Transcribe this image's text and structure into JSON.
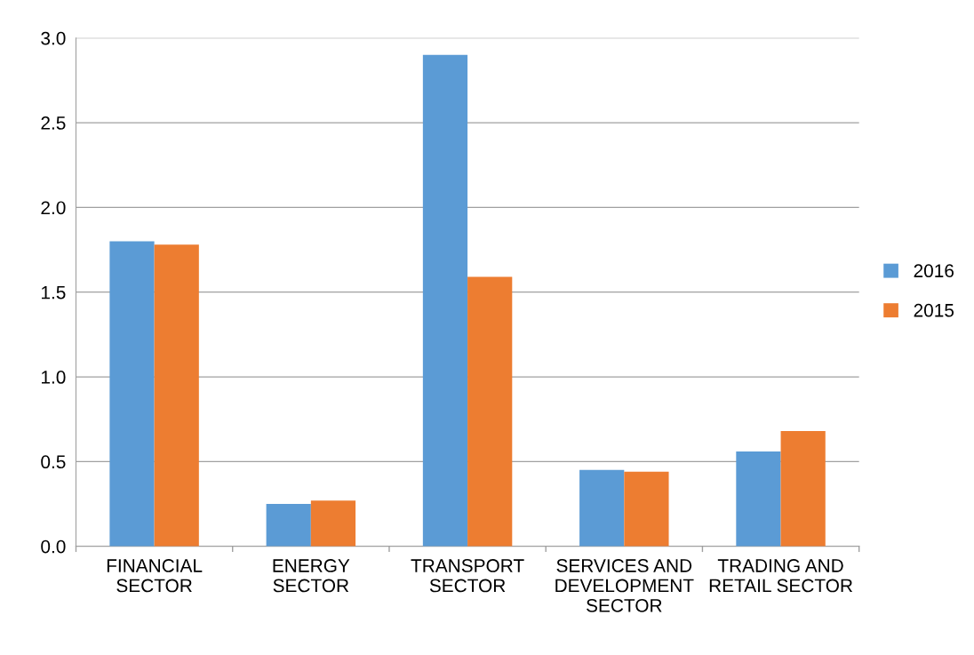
{
  "chart_data": {
    "type": "bar",
    "categories": [
      "FINANCIAL\nSECTOR",
      "ENERGY\nSECTOR",
      "TRANSPORT\nSECTOR",
      "SERVICES AND\nDEVELOPMENT\nSECTOR",
      "TRADING AND\nRETAIL SECTOR"
    ],
    "series": [
      {
        "name": "2016",
        "color": "#5b9bd5",
        "values": [
          1.8,
          0.25,
          2.9,
          0.45,
          0.56
        ]
      },
      {
        "name": "2015",
        "color": "#ed7d31",
        "values": [
          1.78,
          0.27,
          1.59,
          0.44,
          0.68
        ]
      }
    ],
    "ylim": [
      0,
      3
    ],
    "yticks": [
      {
        "value": 0,
        "label": "0.0"
      },
      {
        "value": 0.5,
        "label": "0.5"
      },
      {
        "value": 1,
        "label": "1.0"
      },
      {
        "value": 1.5,
        "label": "1.5"
      },
      {
        "value": 2,
        "label": "2.0"
      },
      {
        "value": 2.5,
        "label": "2.5"
      },
      {
        "value": 3,
        "label": "3.0"
      }
    ],
    "grid": "y",
    "legend": "right"
  }
}
